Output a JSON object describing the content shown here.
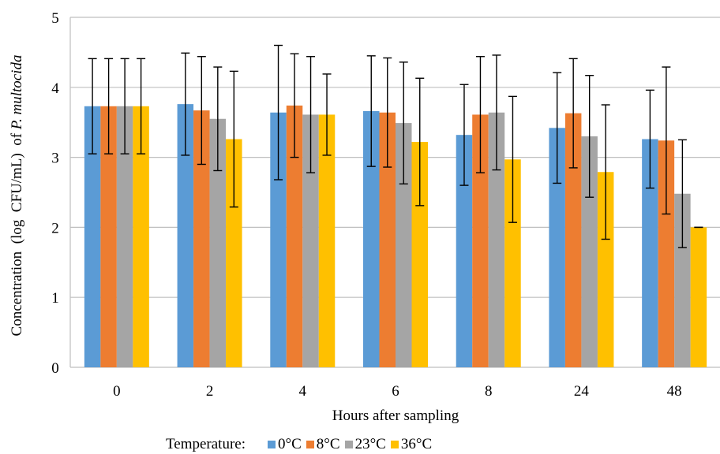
{
  "chart_data": {
    "type": "bar",
    "categories": [
      "0",
      "2",
      "4",
      "6",
      "8",
      "24",
      "48"
    ],
    "series": [
      {
        "name": "0°C",
        "color": "#5B9BD5",
        "values": [
          3.73,
          3.76,
          3.64,
          3.66,
          3.32,
          3.42,
          3.26
        ],
        "errors": [
          0.68,
          0.73,
          0.96,
          0.79,
          0.72,
          0.79,
          0.7
        ]
      },
      {
        "name": "8°C",
        "color": "#ED7D31",
        "values": [
          3.73,
          3.67,
          3.74,
          3.64,
          3.61,
          3.63,
          3.24
        ],
        "errors": [
          0.68,
          0.77,
          0.74,
          0.78,
          0.83,
          0.78,
          1.05
        ]
      },
      {
        "name": "23°C",
        "color": "#A5A5A5",
        "values": [
          3.73,
          3.55,
          3.61,
          3.49,
          3.64,
          3.3,
          2.48
        ],
        "errors": [
          0.68,
          0.74,
          0.83,
          0.87,
          0.82,
          0.87,
          0.77
        ]
      },
      {
        "name": "36°C",
        "color": "#FFC000",
        "values": [
          3.73,
          3.26,
          3.61,
          3.22,
          2.97,
          2.79,
          2.0
        ],
        "errors": [
          0.68,
          0.97,
          0.58,
          0.91,
          0.9,
          0.96,
          0.0
        ]
      }
    ],
    "yticks": [
      "0",
      "1",
      "2",
      "3",
      "4",
      "5"
    ],
    "ylim": [
      0,
      5
    ],
    "ylabel_prefix": "Concentration  (log  CFU/mL)  of ",
    "ylabel_species": "P. multocida",
    "xlabel": "Hours after sampling",
    "legend_title": "Temperature:",
    "legend_position": "bottom",
    "grid": true
  }
}
